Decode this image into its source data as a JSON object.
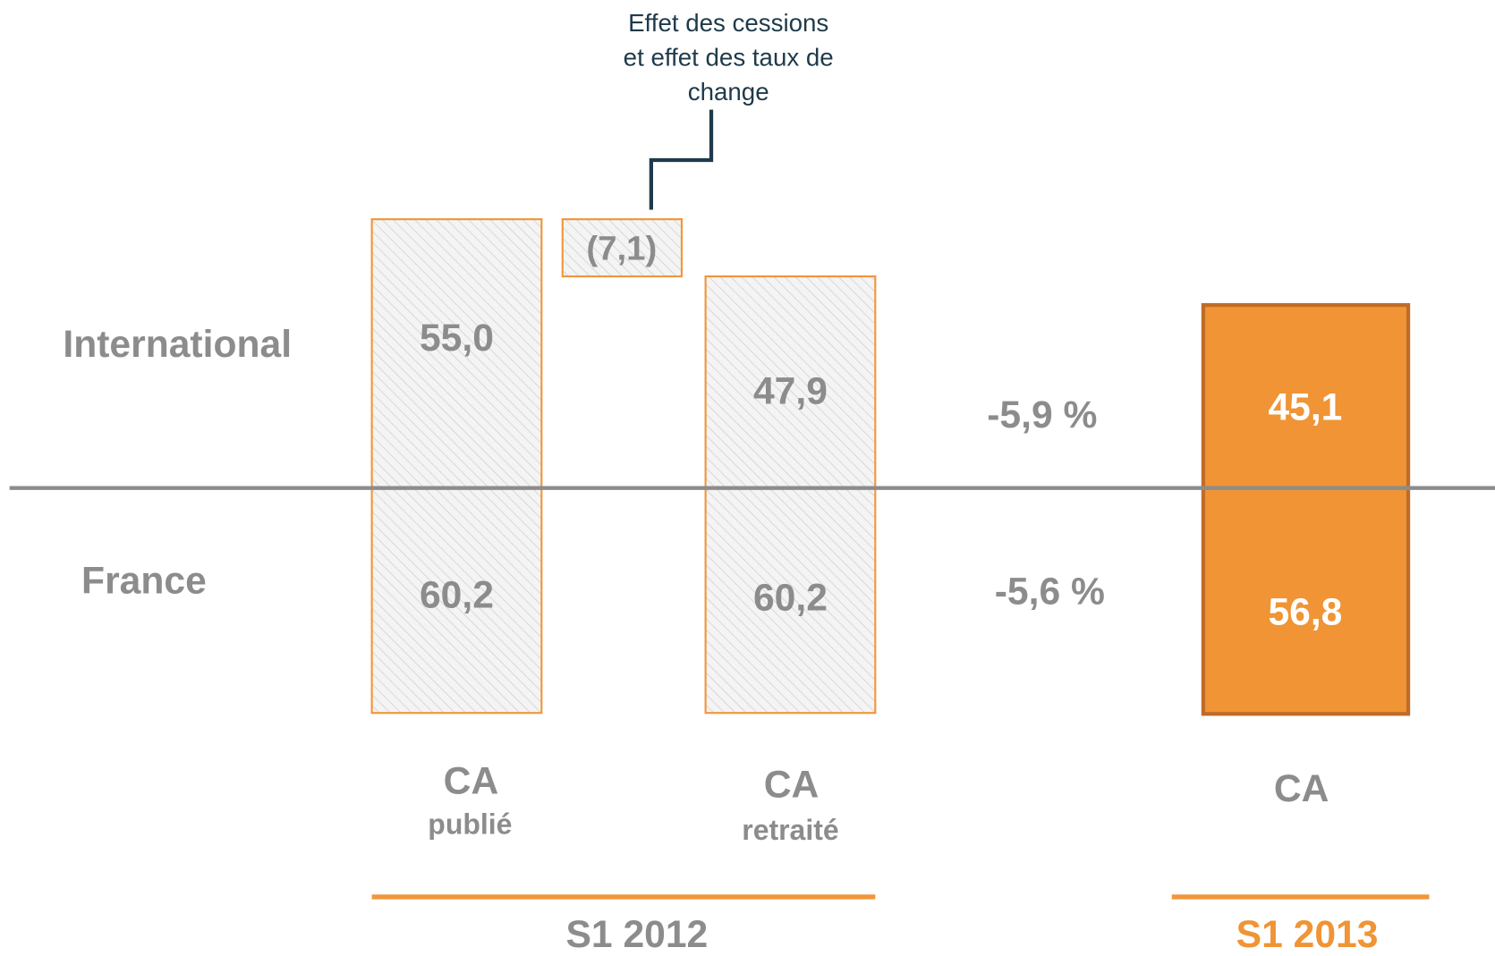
{
  "rows": [
    "International",
    "France"
  ],
  "columns": [
    {
      "label": "CA",
      "sublabel": "publié",
      "international": "55,0",
      "france": "60,2"
    },
    {
      "label": "CA",
      "sublabel": "retraité",
      "international": "47,9",
      "france": "60,2"
    },
    {
      "label": "CA",
      "international": "45,1",
      "france": "56,8"
    }
  ],
  "effect": {
    "label": "(7,1)",
    "note": [
      "Effet des cessions",
      "et effet des taux de",
      "change"
    ]
  },
  "changes": [
    "-5,9 %",
    "-5,6 %"
  ],
  "periods": [
    "S1 2012",
    "S1 2013"
  ]
}
